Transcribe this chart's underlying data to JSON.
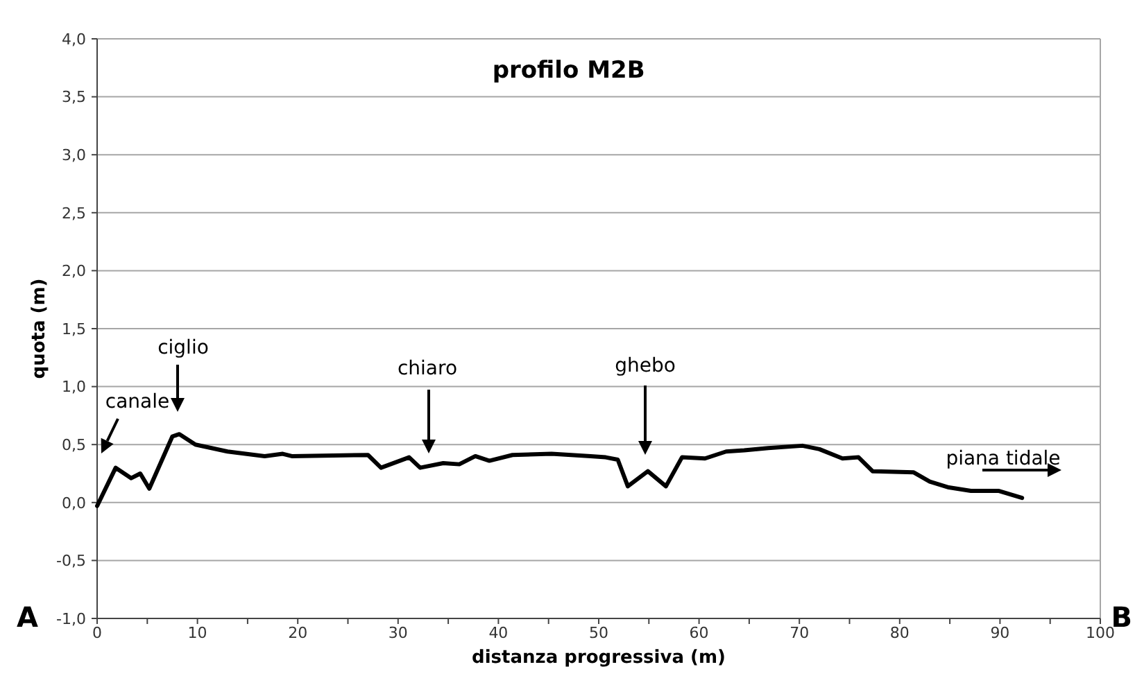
{
  "chart_data": {
    "type": "line",
    "title": "profilo M2B",
    "xlabel": "distanza progressiva (m)",
    "ylabel": "quota (m)",
    "x": [
      0,
      1.85,
      3.4,
      4.3,
      5.2,
      7.5,
      8.2,
      9.8,
      13,
      16.7,
      18.5,
      19.4,
      27,
      28.3,
      31.1,
      32.2,
      34.5,
      36.1,
      37.7,
      39.1,
      41.4,
      45.3,
      49.2,
      50.7,
      51.9,
      52.9,
      54.9,
      56.7,
      58.3,
      60.6,
      62.7,
      64.5,
      66.9,
      70.3,
      72,
      74.3,
      75.9,
      77.3,
      81.4,
      83,
      84.9,
      87.1,
      89.9,
      92.2
    ],
    "series": [
      {
        "color": "#000000",
        "values": [
          -0.03,
          0.3,
          0.21,
          0.25,
          0.12,
          0.57,
          0.59,
          0.5,
          0.44,
          0.4,
          0.42,
          0.4,
          0.41,
          0.3,
          0.39,
          0.3,
          0.34,
          0.33,
          0.4,
          0.36,
          0.41,
          0.42,
          0.4,
          0.39,
          0.37,
          0.14,
          0.27,
          0.14,
          0.39,
          0.38,
          0.44,
          0.45,
          0.47,
          0.49,
          0.46,
          0.38,
          0.39,
          0.27,
          0.26,
          0.18,
          0.13,
          0.1,
          0.1,
          0.04
        ]
      }
    ],
    "xlim": [
      0,
      100
    ],
    "xticks": [
      0,
      {
        "value": 5,
        "label": null
      },
      10,
      {
        "value": 15,
        "label": null
      },
      20,
      {
        "value": 25,
        "label": null
      },
      30,
      {
        "value": 35,
        "label": null
      },
      40,
      {
        "value": 45,
        "label": null
      },
      50,
      {
        "value": 55,
        "label": null
      },
      60,
      {
        "value": 65,
        "label": null
      },
      70,
      {
        "value": 75,
        "label": null
      },
      80,
      {
        "value": 85,
        "label": null
      },
      90,
      {
        "value": 95,
        "label": null
      },
      100
    ],
    "ylim": [
      -1,
      4
    ],
    "yticks": [
      {
        "value": -1,
        "label": "-1,0"
      },
      {
        "value": -0.5,
        "label": "-0,5"
      },
      {
        "value": 0,
        "label": "0,0"
      },
      {
        "value": 0.5,
        "label": "0,5"
      },
      {
        "value": 1,
        "label": "1,0"
      },
      {
        "value": 1.5,
        "label": "1,5"
      },
      {
        "value": 2,
        "label": "2,0"
      },
      {
        "value": 2.5,
        "label": "2,5"
      },
      {
        "value": 3,
        "label": "3,0"
      },
      {
        "value": 3.5,
        "label": "3,5"
      },
      {
        "value": 4,
        "label": "4,0"
      }
    ],
    "grid": "y",
    "marker": "none",
    "line_style": "solid",
    "annotations": [
      "canale",
      "ciglio",
      "chiaro",
      "ghebo",
      "piana tidale",
      "A",
      "B"
    ]
  }
}
